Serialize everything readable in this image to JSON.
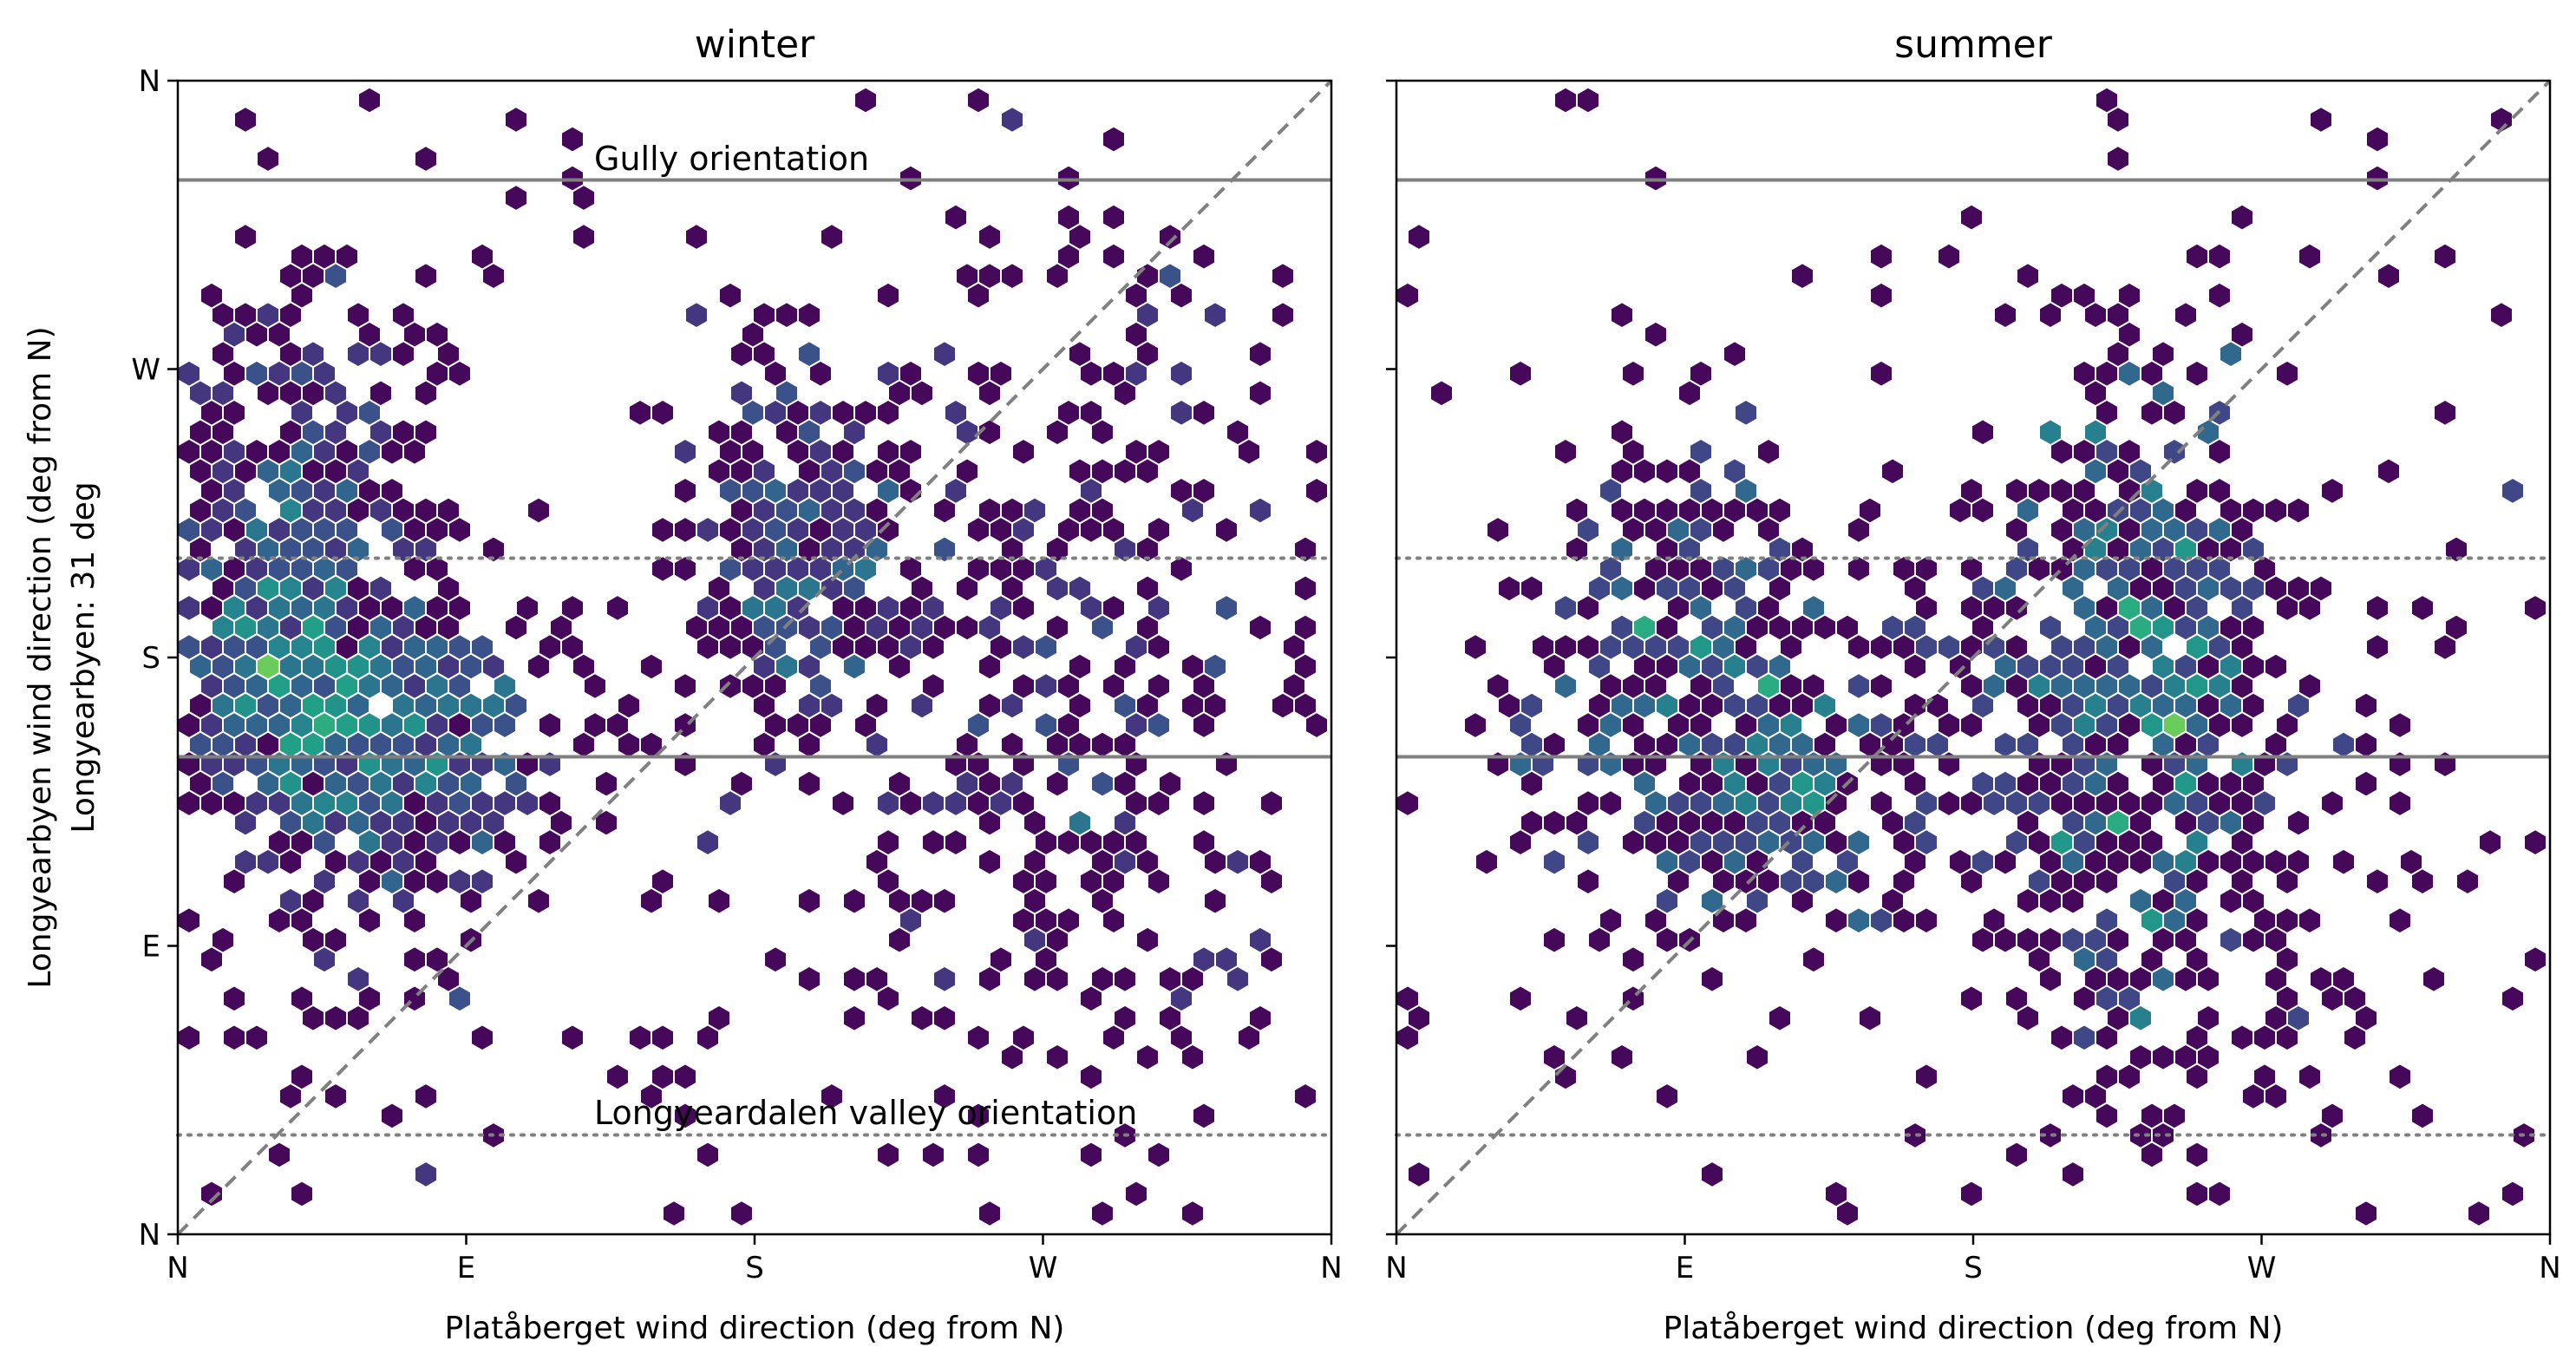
{
  "chart_data": [
    {
      "type": "hexbin",
      "title": "winter",
      "xlabel": "Platåberget wind direction (deg from N)",
      "ylabel": "Longyearbyen wind direction (deg from N)",
      "ylabel2": "Longyearbyen: 31 deg",
      "xlim": [
        0,
        360
      ],
      "ylim": [
        0,
        360
      ],
      "x_ticks": [
        0,
        90,
        180,
        270,
        360
      ],
      "x_tick_labels": [
        "N",
        "E",
        "S",
        "W",
        "N"
      ],
      "y_ticks": [
        0,
        90,
        180,
        270,
        360
      ],
      "y_tick_labels": [
        "N",
        "E",
        "S",
        "W",
        "N"
      ],
      "reference_lines": {
        "identity": "dashed",
        "gully_orientation": [
          149,
          329
        ],
        "valley_orientation": [
          31,
          211
        ]
      },
      "annotations": [
        "Gully orientation",
        "Longyeardalen valley orientation"
      ],
      "colormap": "viridis",
      "clusters": [
        {
          "x": 40,
          "y": 215,
          "sx": 22,
          "sy": 40,
          "n": 380
        },
        {
          "x": 70,
          "y": 155,
          "sx": 28,
          "sy": 22,
          "n": 320
        },
        {
          "x": 35,
          "y": 165,
          "sx": 16,
          "sy": 24,
          "n": 200
        },
        {
          "x": 195,
          "y": 215,
          "sx": 18,
          "sy": 30,
          "n": 230
        },
        {
          "x": 280,
          "y": 170,
          "sx": 42,
          "sy": 65,
          "n": 330
        },
        {
          "x": 60,
          "y": 100,
          "sx": 22,
          "sy": 35,
          "n": 60
        }
      ],
      "scatter_points": 170
    },
    {
      "type": "hexbin",
      "title": "summer",
      "xlabel": "Platåberget wind direction (deg from N)",
      "xlim": [
        0,
        360
      ],
      "ylim": [
        0,
        360
      ],
      "x_ticks": [
        0,
        90,
        180,
        270,
        360
      ],
      "x_tick_labels": [
        "N",
        "E",
        "S",
        "W",
        "N"
      ],
      "y_ticks": [
        0,
        90,
        180,
        270,
        360
      ],
      "y_tick_labels": [
        "",
        "",
        "",
        "",
        ""
      ],
      "reference_lines": {
        "identity": "dashed",
        "gully_orientation": [
          149,
          329
        ],
        "valley_orientation": [
          31,
          211
        ]
      },
      "colormap": "viridis",
      "clusters": [
        {
          "x": 110,
          "y": 145,
          "sx": 32,
          "sy": 30,
          "n": 300
        },
        {
          "x": 225,
          "y": 180,
          "sx": 30,
          "sy": 28,
          "n": 320
        },
        {
          "x": 235,
          "y": 110,
          "sx": 32,
          "sy": 40,
          "n": 240
        },
        {
          "x": 230,
          "y": 245,
          "sx": 18,
          "sy": 28,
          "n": 80
        },
        {
          "x": 70,
          "y": 185,
          "sx": 22,
          "sy": 30,
          "n": 80
        },
        {
          "x": 100,
          "y": 205,
          "sx": 20,
          "sy": 28,
          "n": 70
        }
      ],
      "scatter_points": 130
    }
  ]
}
